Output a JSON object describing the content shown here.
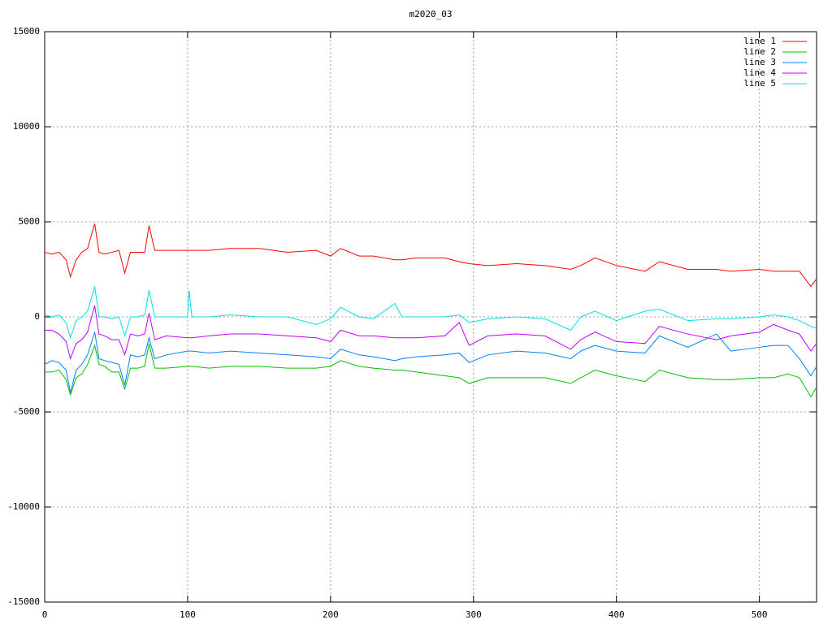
{
  "chart_data": {
    "type": "line",
    "title": "m2020_03",
    "x": [
      0,
      5,
      10,
      15,
      18,
      22,
      26,
      30,
      35,
      38,
      42,
      47,
      52,
      56,
      60,
      65,
      70,
      73,
      77,
      85,
      100,
      101,
      103,
      115,
      130,
      150,
      170,
      190,
      200,
      207,
      220,
      230,
      245,
      250,
      260,
      280,
      290,
      297,
      310,
      330,
      350,
      368,
      375,
      385,
      400,
      420,
      430,
      450,
      470,
      480,
      500,
      510,
      520,
      528,
      536,
      540
    ],
    "series": [
      {
        "name": "line 1",
        "color": "#ff0000",
        "values": [
          3400,
          3300,
          3400,
          3000,
          2100,
          3000,
          3400,
          3600,
          4900,
          3400,
          3300,
          3400,
          3500,
          2300,
          3400,
          3400,
          3400,
          4800,
          3500,
          3500,
          3500,
          3500,
          3500,
          3500,
          3600,
          3600,
          3400,
          3500,
          3200,
          3600,
          3200,
          3200,
          3000,
          3000,
          3100,
          3100,
          2900,
          2800,
          2700,
          2800,
          2700,
          2500,
          2700,
          3100,
          2700,
          2400,
          2900,
          2500,
          2500,
          2400,
          2500,
          2400,
          2400,
          2400,
          1600,
          2000
        ]
      },
      {
        "name": "line 2",
        "color": "#00c000",
        "values": [
          -2900,
          -2900,
          -2800,
          -3300,
          -4100,
          -3200,
          -3000,
          -2500,
          -1500,
          -2500,
          -2600,
          -2900,
          -2900,
          -3800,
          -2700,
          -2700,
          -2600,
          -1400,
          -2700,
          -2700,
          -2600,
          -2600,
          -2600,
          -2700,
          -2600,
          -2600,
          -2700,
          -2700,
          -2600,
          -2300,
          -2600,
          -2700,
          -2800,
          -2800,
          -2900,
          -3100,
          -3200,
          -3500,
          -3200,
          -3200,
          -3200,
          -3500,
          -3200,
          -2800,
          -3100,
          -3400,
          -2800,
          -3200,
          -3300,
          -3300,
          -3200,
          -3200,
          -3000,
          -3200,
          -4200,
          -3700
        ]
      },
      {
        "name": "line 3",
        "color": "#0080ff",
        "values": [
          -2500,
          -2300,
          -2400,
          -2800,
          -4000,
          -2800,
          -2500,
          -2000,
          -800,
          -2200,
          -2300,
          -2400,
          -2500,
          -3600,
          -2000,
          -2100,
          -2000,
          -1100,
          -2200,
          -2000,
          -1800,
          -1800,
          -1800,
          -1900,
          -1800,
          -1900,
          -2000,
          -2100,
          -2200,
          -1700,
          -2000,
          -2100,
          -2300,
          -2200,
          -2100,
          -2000,
          -1900,
          -2400,
          -2000,
          -1800,
          -1900,
          -2200,
          -1800,
          -1500,
          -1800,
          -1900,
          -1000,
          -1600,
          -900,
          -1800,
          -1600,
          -1500,
          -1500,
          -2200,
          -3100,
          -2600
        ]
      },
      {
        "name": "line 4",
        "color": "#c000ff",
        "values": [
          -700,
          -700,
          -900,
          -1300,
          -2200,
          -1400,
          -1200,
          -800,
          600,
          -900,
          -1000,
          -1200,
          -1200,
          -2000,
          -900,
          -1000,
          -900,
          200,
          -1200,
          -1000,
          -1100,
          -1100,
          -1100,
          -1000,
          -900,
          -900,
          -1000,
          -1100,
          -1300,
          -700,
          -1000,
          -1000,
          -1100,
          -1100,
          -1100,
          -1000,
          -300,
          -1500,
          -1000,
          -900,
          -1000,
          -1700,
          -1200,
          -800,
          -1300,
          -1400,
          -500,
          -900,
          -1200,
          -1000,
          -800,
          -400,
          -700,
          -900,
          -1800,
          -1400
        ]
      },
      {
        "name": "line 5",
        "color": "#00e0e0",
        "values": [
          100,
          0,
          100,
          -300,
          -1100,
          -200,
          0,
          300,
          1600,
          0,
          0,
          -100,
          0,
          -1000,
          0,
          0,
          100,
          1400,
          0,
          0,
          0,
          1400,
          0,
          0,
          100,
          0,
          0,
          -400,
          -100,
          500,
          0,
          -100,
          700,
          0,
          0,
          0,
          100,
          -300,
          -100,
          0,
          -100,
          -700,
          0,
          300,
          -200,
          300,
          400,
          -200,
          -100,
          -100,
          0,
          100,
          0,
          -200,
          -500,
          -600
        ]
      }
    ],
    "xlim": [
      0,
      540
    ],
    "xticks": [
      0,
      100,
      200,
      300,
      400,
      500
    ],
    "ylim": [
      -15000,
      15000
    ],
    "yticks": [
      -15000,
      -10000,
      -5000,
      0,
      5000,
      10000,
      15000
    ],
    "grid": true,
    "legend": "top-right"
  }
}
